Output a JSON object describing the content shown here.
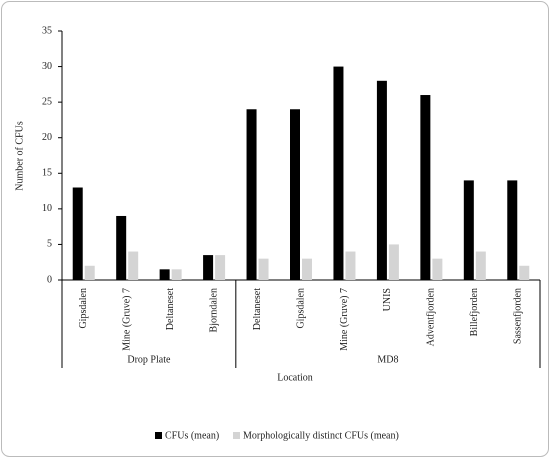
{
  "chart_data": {
    "type": "grouped-bar",
    "y_label": "Number of CFUs",
    "x_label": "Location",
    "groups": [
      {
        "label": "Drop Plate",
        "categories": [
          "Gipsdalen",
          "Mine (Gruve) 7",
          "Deltaneset",
          "Bjorndalen"
        ]
      },
      {
        "label": "MD8",
        "categories": [
          "Deltaneset",
          "Gipsdalen",
          "Mine (Gruve) 7",
          "UNIS",
          "Adventfjorden",
          "Billefjorden",
          "Sassenfjorden"
        ]
      }
    ],
    "series": [
      {
        "name": "CFUs (mean)",
        "color": "#000000",
        "values": [
          13,
          9,
          1.5,
          3.5,
          24,
          24,
          30,
          28,
          26,
          14,
          14
        ]
      },
      {
        "name": "Morphologically distinct CFUs (mean)",
        "color": "#d4d4d4",
        "values": [
          2,
          4,
          1.5,
          3.5,
          3,
          3,
          4,
          5,
          3,
          4,
          2
        ]
      }
    ],
    "ylim": [
      0,
      35
    ],
    "yticks": [
      0,
      5,
      10,
      15,
      20,
      25,
      30,
      35
    ],
    "grid": false,
    "legend": "bottom"
  }
}
